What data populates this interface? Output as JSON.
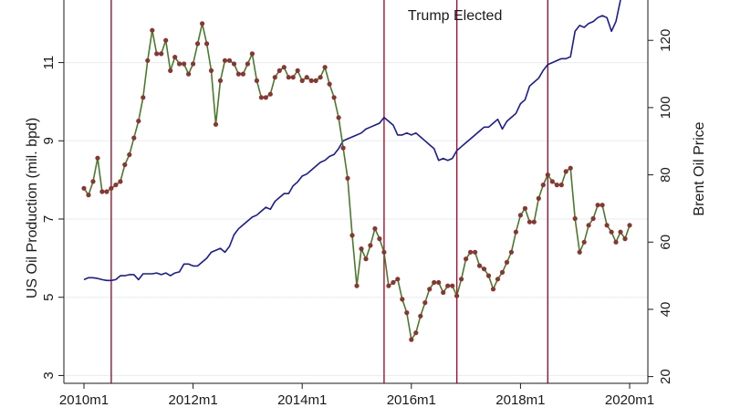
{
  "chart_data": {
    "type": "line",
    "title": "",
    "xlabel": "",
    "xlim": [
      0,
      120
    ],
    "x_ticks": [
      {
        "t": 0,
        "label": "2010m1"
      },
      {
        "t": 24,
        "label": "2012m1"
      },
      {
        "t": 48,
        "label": "2014m1"
      },
      {
        "t": 72,
        "label": "2016m1"
      },
      {
        "t": 96,
        "label": "2018m1"
      },
      {
        "t": 120,
        "label": "2020m1"
      }
    ],
    "y_left": {
      "label": "US Oil Production  (mil. bpd)",
      "range": [
        2.8,
        12.6
      ],
      "ticks": [
        {
          "v": 3,
          "label": "3"
        },
        {
          "v": 5,
          "label": "5"
        },
        {
          "v": 7,
          "label": "7"
        },
        {
          "v": 9,
          "label": "9"
        },
        {
          "v": 11,
          "label": "11"
        }
      ]
    },
    "y_right": {
      "label": "Brent Oil Price",
      "range": [
        18,
        132
      ],
      "ticks": [
        {
          "v": 20,
          "label": "20"
        },
        {
          "v": 40,
          "label": "40"
        },
        {
          "v": 60,
          "label": "60"
        },
        {
          "v": 80,
          "label": "80"
        },
        {
          "v": 100,
          "label": "100"
        },
        {
          "v": 120,
          "label": "120"
        }
      ]
    },
    "grid": true,
    "vertical_lines": [
      6,
      66,
      82,
      102
    ],
    "annotations": [
      {
        "text": "Trump Elected",
        "t": 82
      }
    ],
    "series": [
      {
        "axis": "left",
        "color": "#1a1a9c",
        "points": [
          [
            0,
            5.45
          ],
          [
            1,
            5.5
          ],
          [
            2,
            5.5
          ],
          [
            3,
            5.48
          ],
          [
            4,
            5.45
          ],
          [
            5,
            5.43
          ],
          [
            6,
            5.43
          ],
          [
            7,
            5.45
          ],
          [
            8,
            5.55
          ],
          [
            9,
            5.55
          ],
          [
            10,
            5.58
          ],
          [
            11,
            5.58
          ],
          [
            12,
            5.45
          ],
          [
            13,
            5.6
          ],
          [
            14,
            5.6
          ],
          [
            15,
            5.6
          ],
          [
            16,
            5.62
          ],
          [
            17,
            5.58
          ],
          [
            18,
            5.62
          ],
          [
            19,
            5.55
          ],
          [
            20,
            5.62
          ],
          [
            21,
            5.65
          ],
          [
            22,
            5.85
          ],
          [
            23,
            5.85
          ],
          [
            24,
            5.8
          ],
          [
            25,
            5.8
          ],
          [
            26,
            5.9
          ],
          [
            27,
            6.0
          ],
          [
            28,
            6.15
          ],
          [
            29,
            6.2
          ],
          [
            30,
            6.25
          ],
          [
            31,
            6.15
          ],
          [
            32,
            6.3
          ],
          [
            33,
            6.6
          ],
          [
            34,
            6.75
          ],
          [
            35,
            6.85
          ],
          [
            36,
            6.95
          ],
          [
            37,
            7.05
          ],
          [
            38,
            7.1
          ],
          [
            39,
            7.2
          ],
          [
            40,
            7.3
          ],
          [
            41,
            7.25
          ],
          [
            42,
            7.45
          ],
          [
            43,
            7.55
          ],
          [
            44,
            7.65
          ],
          [
            45,
            7.65
          ],
          [
            46,
            7.85
          ],
          [
            47,
            7.95
          ],
          [
            48,
            8.1
          ],
          [
            49,
            8.15
          ],
          [
            50,
            8.25
          ],
          [
            51,
            8.35
          ],
          [
            52,
            8.45
          ],
          [
            53,
            8.5
          ],
          [
            54,
            8.6
          ],
          [
            55,
            8.65
          ],
          [
            56,
            8.8
          ],
          [
            57,
            9.0
          ],
          [
            58,
            9.05
          ],
          [
            59,
            9.1
          ],
          [
            60,
            9.15
          ],
          [
            61,
            9.2
          ],
          [
            62,
            9.3
          ],
          [
            63,
            9.35
          ],
          [
            64,
            9.4
          ],
          [
            65,
            9.45
          ],
          [
            66,
            9.6
          ],
          [
            67,
            9.5
          ],
          [
            68,
            9.4
          ],
          [
            69,
            9.15
          ],
          [
            70,
            9.15
          ],
          [
            71,
            9.2
          ],
          [
            72,
            9.15
          ],
          [
            73,
            9.2
          ],
          [
            74,
            9.1
          ],
          [
            75,
            9.0
          ],
          [
            76,
            8.9
          ],
          [
            77,
            8.8
          ],
          [
            78,
            8.5
          ],
          [
            79,
            8.55
          ],
          [
            80,
            8.5
          ],
          [
            81,
            8.55
          ],
          [
            82,
            8.75
          ],
          [
            83,
            8.85
          ],
          [
            84,
            8.95
          ],
          [
            85,
            9.05
          ],
          [
            86,
            9.15
          ],
          [
            87,
            9.25
          ],
          [
            88,
            9.35
          ],
          [
            89,
            9.35
          ],
          [
            90,
            9.45
          ],
          [
            91,
            9.55
          ],
          [
            92,
            9.3
          ],
          [
            93,
            9.5
          ],
          [
            94,
            9.6
          ],
          [
            95,
            9.7
          ],
          [
            96,
            9.95
          ],
          [
            97,
            10.05
          ],
          [
            98,
            10.4
          ],
          [
            99,
            10.5
          ],
          [
            100,
            10.6
          ],
          [
            101,
            10.8
          ],
          [
            102,
            10.95
          ],
          [
            103,
            11.0
          ],
          [
            104,
            11.05
          ],
          [
            105,
            11.1
          ],
          [
            106,
            11.1
          ],
          [
            107,
            11.15
          ],
          [
            108,
            11.8
          ],
          [
            109,
            11.95
          ],
          [
            110,
            11.9
          ],
          [
            111,
            12.0
          ],
          [
            112,
            12.05
          ],
          [
            113,
            12.15
          ],
          [
            114,
            12.2
          ],
          [
            115,
            12.15
          ],
          [
            116,
            11.8
          ],
          [
            117,
            12.05
          ],
          [
            118,
            12.6
          ]
        ]
      },
      {
        "axis": "right",
        "color": "#4a7a2c",
        "marker_color": "#8a3530",
        "points": [
          [
            0,
            76
          ],
          [
            1,
            74
          ],
          [
            2,
            78
          ],
          [
            3,
            85
          ],
          [
            4,
            75
          ],
          [
            5,
            75
          ],
          [
            6,
            76
          ],
          [
            7,
            77
          ],
          [
            8,
            78
          ],
          [
            9,
            83
          ],
          [
            10,
            86
          ],
          [
            11,
            91
          ],
          [
            12,
            96
          ],
          [
            13,
            103
          ],
          [
            14,
            114
          ],
          [
            15,
            123
          ],
          [
            16,
            116
          ],
          [
            17,
            116
          ],
          [
            18,
            120
          ],
          [
            19,
            111
          ],
          [
            20,
            115
          ],
          [
            21,
            113
          ],
          [
            22,
            113
          ],
          [
            23,
            110
          ],
          [
            24,
            113
          ],
          [
            25,
            119
          ],
          [
            26,
            125
          ],
          [
            27,
            119
          ],
          [
            28,
            111
          ],
          [
            29,
            95
          ],
          [
            30,
            108
          ],
          [
            31,
            114
          ],
          [
            32,
            114
          ],
          [
            33,
            113
          ],
          [
            34,
            110
          ],
          [
            35,
            110
          ],
          [
            36,
            113
          ],
          [
            37,
            116
          ],
          [
            38,
            108
          ],
          [
            39,
            103
          ],
          [
            40,
            103
          ],
          [
            41,
            104
          ],
          [
            42,
            109
          ],
          [
            43,
            111
          ],
          [
            44,
            112
          ],
          [
            45,
            109
          ],
          [
            46,
            109
          ],
          [
            47,
            111
          ],
          [
            48,
            108
          ],
          [
            49,
            109
          ],
          [
            50,
            108
          ],
          [
            51,
            108
          ],
          [
            52,
            109
          ],
          [
            53,
            112
          ],
          [
            54,
            107
          ],
          [
            55,
            103
          ],
          [
            56,
            97
          ],
          [
            57,
            88
          ],
          [
            58,
            79
          ],
          [
            59,
            62
          ],
          [
            60,
            47
          ],
          [
            61,
            58
          ],
          [
            62,
            55
          ],
          [
            63,
            59
          ],
          [
            64,
            64
          ],
          [
            65,
            61
          ],
          [
            66,
            57
          ],
          [
            67,
            47
          ],
          [
            68,
            48
          ],
          [
            69,
            49
          ],
          [
            70,
            43
          ],
          [
            71,
            39
          ],
          [
            72,
            31
          ],
          [
            73,
            33
          ],
          [
            74,
            38
          ],
          [
            75,
            42
          ],
          [
            76,
            46
          ],
          [
            77,
            48
          ],
          [
            78,
            48
          ],
          [
            79,
            45
          ],
          [
            80,
            47
          ],
          [
            81,
            47
          ],
          [
            82,
            44
          ],
          [
            83,
            49
          ],
          [
            84,
            55
          ],
          [
            85,
            57
          ],
          [
            86,
            57
          ],
          [
            87,
            53
          ],
          [
            88,
            52
          ],
          [
            89,
            50
          ],
          [
            90,
            46
          ],
          [
            91,
            49
          ],
          [
            92,
            51
          ],
          [
            93,
            54
          ],
          [
            94,
            57
          ],
          [
            95,
            63
          ],
          [
            96,
            68
          ],
          [
            97,
            70
          ],
          [
            98,
            66
          ],
          [
            99,
            66
          ],
          [
            100,
            73
          ],
          [
            101,
            77
          ],
          [
            102,
            80
          ],
          [
            103,
            78
          ],
          [
            104,
            77
          ],
          [
            105,
            77
          ],
          [
            106,
            81
          ],
          [
            107,
            82
          ],
          [
            108,
            67
          ],
          [
            109,
            57
          ],
          [
            110,
            60
          ],
          [
            111,
            65
          ],
          [
            112,
            67
          ],
          [
            113,
            71
          ],
          [
            114,
            71
          ],
          [
            115,
            65
          ],
          [
            116,
            63
          ],
          [
            117,
            60
          ],
          [
            118,
            63
          ],
          [
            119,
            61
          ],
          [
            120,
            65
          ]
        ]
      }
    ]
  }
}
